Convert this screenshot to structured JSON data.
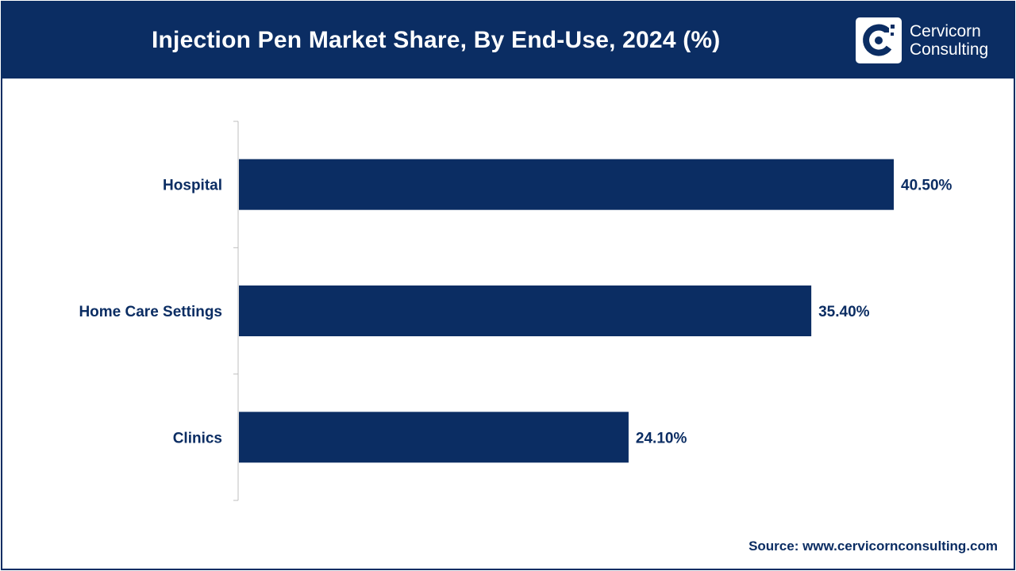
{
  "header": {
    "title": "Injection Pen Market Share, By End-Use, 2024 (%)",
    "background_color": "#0b2d63"
  },
  "logo": {
    "line1": "Cervicorn",
    "line2": "Consulting",
    "icon": "cervicorn-logo-icon"
  },
  "chart_data": {
    "type": "bar",
    "orientation": "horizontal",
    "title": "Injection Pen Market Share, By End-Use, 2024 (%)",
    "categories": [
      "Hospital",
      "Home Care Settings",
      "Clinics"
    ],
    "values": [
      40.5,
      35.4,
      24.1
    ],
    "value_labels": [
      "40.50%",
      "35.40%",
      "24.10%"
    ],
    "xlabel": "",
    "ylabel": "",
    "xlim": [
      0,
      41
    ],
    "grid": false,
    "legend": "none",
    "bar_color": "#0b2d63"
  },
  "footer": {
    "source": "Source: www.cervicornconsulting.com"
  }
}
